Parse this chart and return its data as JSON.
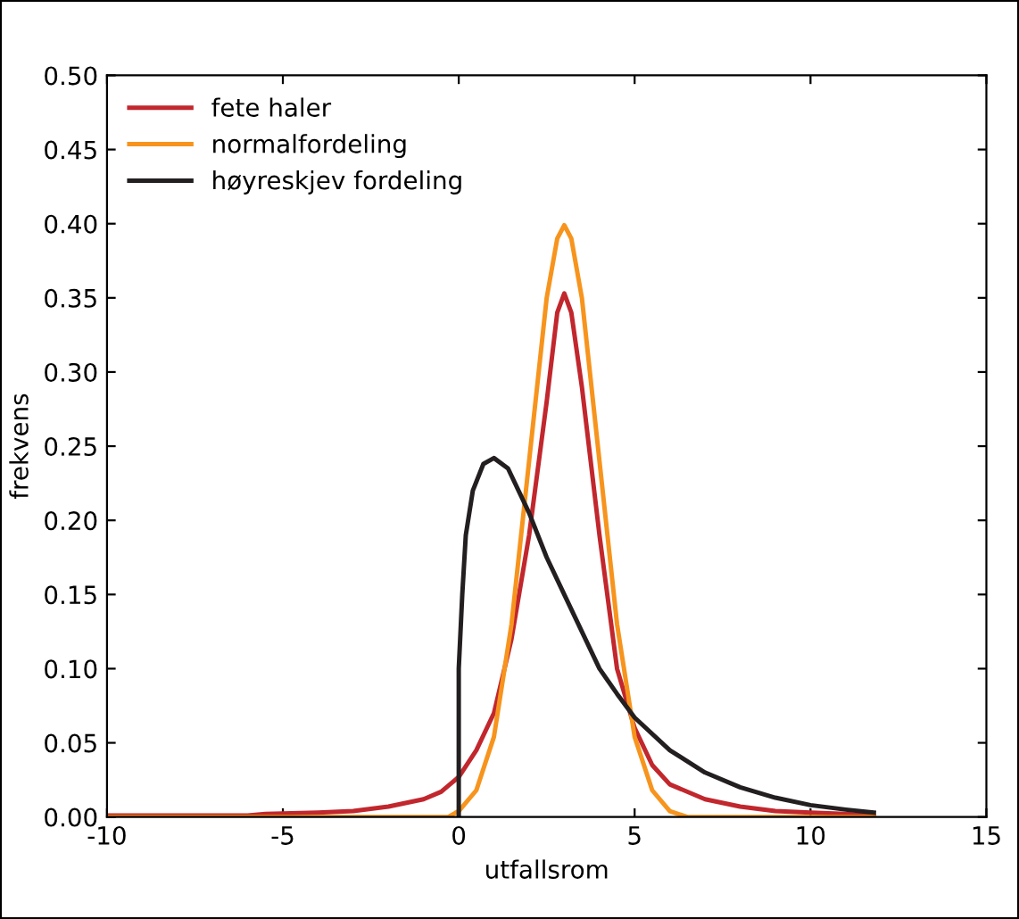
{
  "chart_data": {
    "type": "line",
    "xlabel": "utfallsrom",
    "ylabel": "frekvens",
    "xlim": [
      -10,
      15
    ],
    "xticks": [
      -10,
      -5,
      0,
      5,
      10,
      15
    ],
    "ylim": [
      0,
      0.5
    ],
    "yticks": [
      {
        "value": 0,
        "label": "0.00"
      },
      {
        "value": 0.05,
        "label": "0.05"
      },
      {
        "value": 0.1,
        "label": "0.10"
      },
      {
        "value": 0.15,
        "label": "0.15"
      },
      {
        "value": 0.2,
        "label": "0.20"
      },
      {
        "value": 0.25,
        "label": "0.25"
      },
      {
        "value": 0.3,
        "label": "0.30"
      },
      {
        "value": 0.35,
        "label": "0.35"
      },
      {
        "value": 0.4,
        "label": "0.40"
      },
      {
        "value": 0.45,
        "label": "0.45"
      },
      {
        "value": 0.5,
        "label": "0.50"
      }
    ],
    "grid": false,
    "legend": "top left",
    "marker": "none",
    "line_style": "solid",
    "series": [
      {
        "name": "fete haler",
        "color": "#c1272d",
        "x": [
          -10,
          -6,
          -5.5,
          -4,
          -3,
          -2,
          -1,
          -0.5,
          0,
          0.5,
          1,
          1.5,
          2,
          2.5,
          2.8,
          3,
          3.2,
          3.5,
          4,
          4.5,
          5,
          5.5,
          6,
          7,
          8,
          9,
          10,
          11,
          11.8
        ],
        "values": [
          0.001,
          0.001,
          0.002,
          0.003,
          0.004,
          0.007,
          0.012,
          0.017,
          0.027,
          0.045,
          0.07,
          0.12,
          0.19,
          0.28,
          0.34,
          0.353,
          0.34,
          0.29,
          0.19,
          0.1,
          0.06,
          0.035,
          0.022,
          0.012,
          0.007,
          0.004,
          0.003,
          0.002,
          0.001
        ]
      },
      {
        "name": "normalfordeling",
        "color": "#f7941d",
        "x": [
          -10,
          -0.3,
          0,
          0.5,
          1,
          1.5,
          2,
          2.5,
          2.8,
          3,
          3.2,
          3.5,
          4,
          4.5,
          5,
          5.5,
          6,
          6.5,
          11.8
        ],
        "values": [
          0,
          0,
          0.004,
          0.018,
          0.054,
          0.13,
          0.24,
          0.35,
          0.39,
          0.399,
          0.39,
          0.35,
          0.24,
          0.13,
          0.054,
          0.018,
          0.004,
          0,
          0
        ]
      },
      {
        "name": "høyreskjev fordeling",
        "color": "#231f20",
        "x": [
          0,
          0,
          0.1,
          0.2,
          0.4,
          0.7,
          1,
          1.4,
          2,
          2.5,
          3,
          3.5,
          4,
          4.5,
          5,
          6,
          7,
          8,
          9,
          10,
          11,
          11.8
        ],
        "values": [
          0,
          0.1,
          0.15,
          0.19,
          0.22,
          0.238,
          0.242,
          0.235,
          0.205,
          0.175,
          0.15,
          0.125,
          0.1,
          0.083,
          0.067,
          0.045,
          0.03,
          0.02,
          0.013,
          0.008,
          0.005,
          0.003
        ]
      }
    ]
  }
}
